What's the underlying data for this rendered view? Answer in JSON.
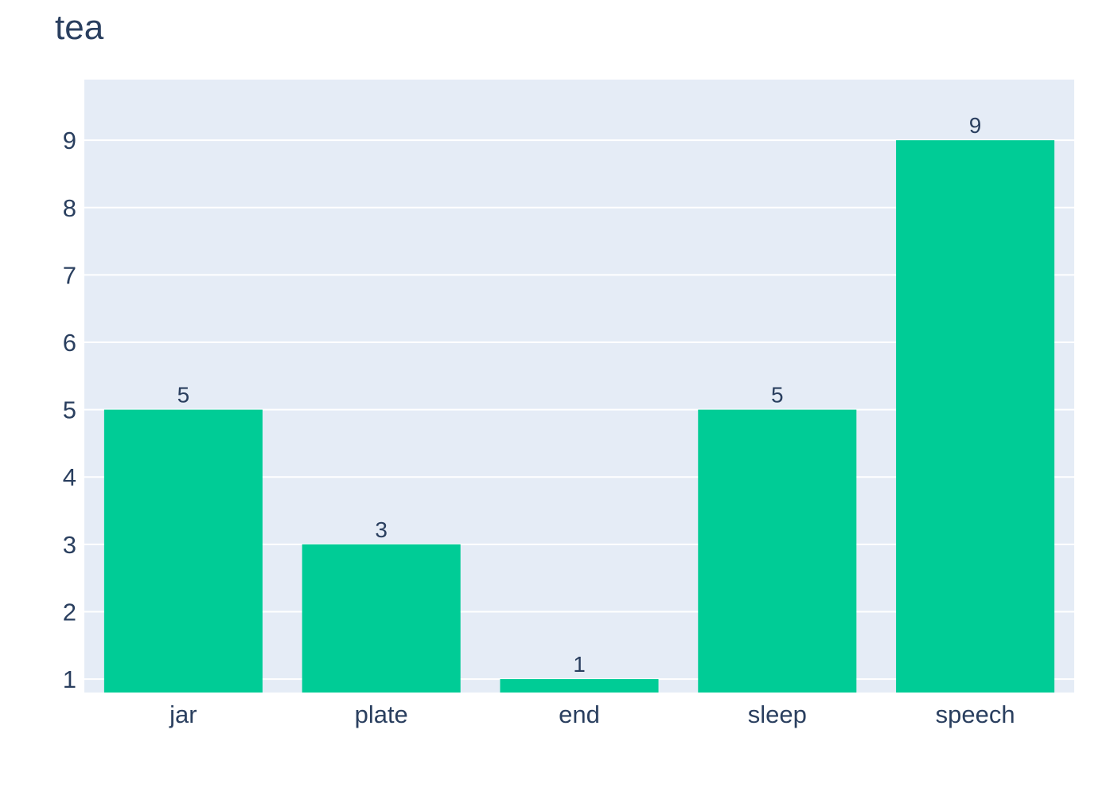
{
  "chart_data": {
    "type": "bar",
    "title": "tea",
    "xlabel": "",
    "ylabel": "",
    "categories": [
      "jar",
      "plate",
      "end",
      "sleep",
      "speech"
    ],
    "values": [
      5,
      3,
      1,
      5,
      9
    ],
    "data_labels": [
      "5",
      "3",
      "1",
      "5",
      "9"
    ],
    "ylim": [
      0.8,
      9.9
    ],
    "yticks": [
      1,
      2,
      3,
      4,
      5,
      6,
      7,
      8,
      9
    ],
    "ytick_labels": [
      "1",
      "2",
      "3",
      "4",
      "5",
      "6",
      "7",
      "8",
      "9"
    ],
    "grid": true,
    "legend": "none",
    "colors": {
      "bar": "#00cc96",
      "plot_background": "#e5ecf6",
      "gridline": "#ffffff",
      "text": "#2a3f5f"
    }
  }
}
